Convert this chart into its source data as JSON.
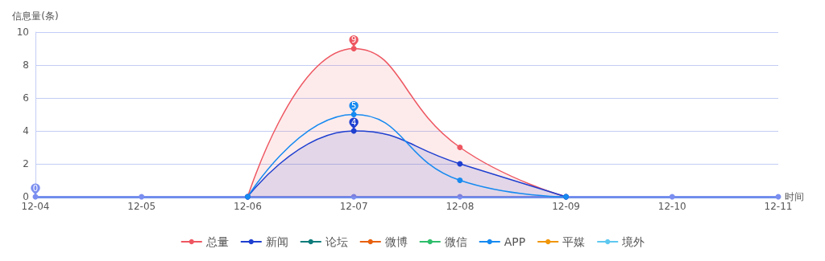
{
  "chart_data": {
    "type": "line",
    "xlabel": "时间",
    "ylabel": "信息量(条)",
    "categories": [
      "12-04",
      "12-05",
      "12-06",
      "12-07",
      "12-08",
      "12-09",
      "12-10",
      "12-11"
    ],
    "series": [
      {
        "name": "总量",
        "type": "area",
        "color": "#ee5761",
        "values": [
          null,
          null,
          0,
          9,
          3,
          0,
          null,
          null
        ],
        "value_labels": [
          null,
          null,
          null,
          "9",
          null,
          null,
          null,
          null
        ]
      },
      {
        "name": "新闻",
        "type": "area",
        "color": "#1e3fd0",
        "values": [
          null,
          null,
          0,
          4,
          2,
          0,
          null,
          null
        ],
        "value_labels": [
          null,
          null,
          null,
          "4",
          null,
          null,
          null,
          null
        ]
      },
      {
        "name": "论坛",
        "color": "#0e7c7b",
        "values": [
          null,
          null,
          null,
          null,
          null,
          null,
          null,
          null
        ]
      },
      {
        "name": "微博",
        "color": "#e8600e",
        "values": [
          null,
          null,
          null,
          null,
          null,
          null,
          null,
          null
        ]
      },
      {
        "name": "微信",
        "color": "#2ebd6b",
        "values": [
          null,
          null,
          null,
          null,
          null,
          null,
          null,
          null
        ]
      },
      {
        "name": "APP",
        "color": "#168af0",
        "values": [
          null,
          null,
          0,
          5,
          1,
          0,
          null,
          null
        ],
        "value_labels": [
          null,
          null,
          null,
          "5",
          null,
          null,
          null,
          null
        ]
      },
      {
        "name": "平媒",
        "color": "#f0960a",
        "values": [
          null,
          null,
          null,
          null,
          null,
          null,
          null,
          null
        ]
      },
      {
        "name": "境外",
        "color": "#5ec8f0",
        "values": [
          null,
          null,
          null,
          null,
          null,
          null,
          null,
          null
        ]
      },
      {
        "color": "#a87be8",
        "values": [
          null,
          null,
          null,
          null,
          null,
          null,
          null,
          null
        ]
      },
      {
        "color": "#7b8ff0",
        "values": [
          0,
          0,
          0,
          0,
          0,
          0,
          0,
          0
        ],
        "value_labels": [
          "0",
          null,
          null,
          null,
          null,
          null,
          null,
          null
        ]
      }
    ],
    "ylim": [
      0,
      10
    ],
    "yticks": [
      0,
      2,
      4,
      6,
      8,
      10
    ],
    "grid": "y",
    "legend": "bottom",
    "marker": "circle"
  }
}
